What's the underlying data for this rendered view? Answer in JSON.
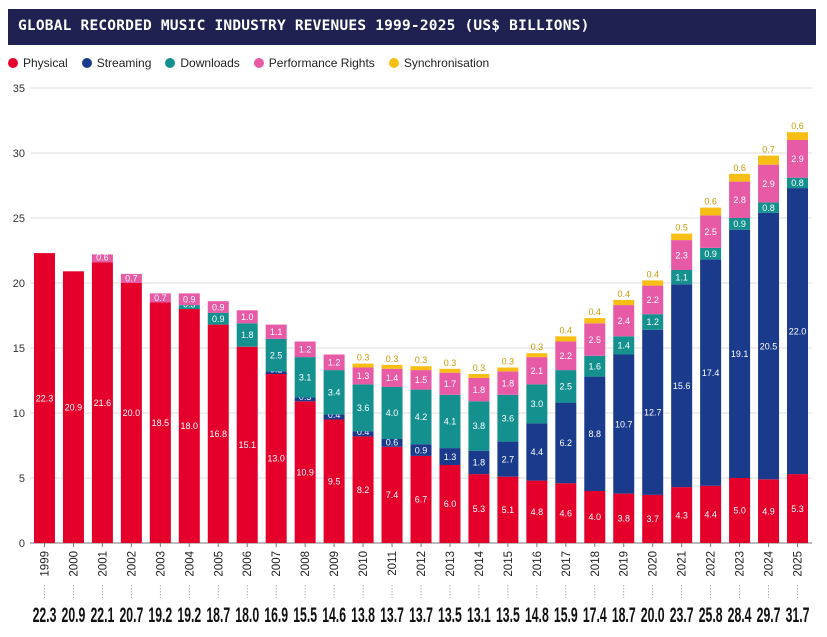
{
  "chart_data": {
    "type": "bar",
    "stacked": true,
    "title": "GLOBAL RECORDED MUSIC INDUSTRY REVENUES 1999-2025 (US$ BILLIONS)",
    "ylim": [
      0,
      35
    ],
    "yticks": [
      0,
      5,
      10,
      15,
      20,
      25,
      30,
      35
    ],
    "grid": true,
    "legend_position": "top-left",
    "categories": [
      "1999",
      "2000",
      "2001",
      "2002",
      "2003",
      "2004",
      "2005",
      "2006",
      "2007",
      "2008",
      "2009",
      "2010",
      "2011",
      "2012",
      "2013",
      "2014",
      "2015",
      "2016",
      "2017",
      "2018",
      "2019",
      "2020",
      "2021",
      "2022",
      "2023",
      "2024",
      "2025"
    ],
    "series": [
      {
        "name": "Physical",
        "color": "#e4002b",
        "values": [
          22.3,
          20.9,
          21.6,
          20.0,
          18.5,
          18.0,
          16.8,
          15.1,
          13.0,
          10.9,
          9.5,
          8.2,
          7.4,
          6.7,
          6.0,
          5.3,
          5.1,
          4.8,
          4.6,
          4.0,
          3.8,
          3.7,
          4.3,
          4.4,
          5.0,
          4.9,
          5.3
        ],
        "labels": [
          "22.3",
          "20.9",
          "21.6",
          "20.0",
          "18.5",
          "18.0",
          "16.8",
          "15.1",
          "13.0",
          "10.9",
          "9.5",
          "8.2",
          "7.4",
          "6.7",
          "6.0",
          "5.3",
          "5.1",
          "4.8",
          "4.6",
          "4.0",
          "3.8",
          "3.7",
          "4.3",
          "4.4",
          "5.0",
          "4.9",
          "5.3"
        ]
      },
      {
        "name": "Streaming",
        "color": "#1a3a8c",
        "values": [
          0,
          0,
          0,
          0,
          0,
          0,
          0,
          0,
          0.2,
          0.3,
          0.4,
          0.4,
          0.6,
          0.9,
          1.3,
          1.8,
          2.7,
          4.4,
          6.2,
          8.8,
          10.7,
          12.7,
          15.6,
          17.4,
          19.1,
          20.5,
          22.0
        ],
        "labels": [
          "",
          "",
          "",
          "",
          "",
          "",
          "",
          "",
          "0.2",
          "0.3",
          "0.4",
          "0.4",
          "0.6",
          "0.9",
          "1.3",
          "1.8",
          "2.7",
          "4.4",
          "6.2",
          "8.8",
          "10.7",
          "12.7",
          "15.6",
          "17.4",
          "19.1",
          "20.5",
          "22.0"
        ]
      },
      {
        "name": "Downloads",
        "color": "#14918f",
        "values": [
          0,
          0,
          0,
          0,
          0,
          0.3,
          0.9,
          1.8,
          2.5,
          3.1,
          3.4,
          3.6,
          4.0,
          4.2,
          4.1,
          3.8,
          3.6,
          3.0,
          2.5,
          1.6,
          1.4,
          1.2,
          1.1,
          0.9,
          0.9,
          0.8,
          0.8
        ],
        "labels": [
          "",
          "",
          "",
          "",
          "",
          "0.3",
          "0.9",
          "1.8",
          "2.5",
          "3.1",
          "3.4",
          "3.6",
          "4.0",
          "4.2",
          "4.1",
          "3.8",
          "3.6",
          "3.0",
          "2.5",
          "1.6",
          "1.4",
          "1.2",
          "1.1",
          "0.9",
          "0.9",
          "0.8",
          "0.8"
        ]
      },
      {
        "name": "Performance Rights",
        "color": "#e75aa6",
        "values": [
          0,
          0,
          0.6,
          0.7,
          0.7,
          0.9,
          0.9,
          1.0,
          1.1,
          1.2,
          1.2,
          1.3,
          1.4,
          1.5,
          1.7,
          1.8,
          1.8,
          2.1,
          2.2,
          2.5,
          2.4,
          2.2,
          2.3,
          2.5,
          2.8,
          2.9,
          2.9
        ],
        "labels": [
          "",
          "",
          "0.6",
          "0.7",
          "0.7",
          "0.9",
          "0.9",
          "1.0",
          "1.1",
          "1.2",
          "1.2",
          "1.3",
          "1.4",
          "1.5",
          "1.7",
          "1.8",
          "1.8",
          "2.1",
          "2.2",
          "2.5",
          "2.4",
          "2.2",
          "2.3",
          "2.5",
          "2.8",
          "2.9",
          "2.9"
        ]
      },
      {
        "name": "Synchronisation",
        "color": "#f7be16",
        "values": [
          0,
          0,
          0,
          0,
          0,
          0,
          0,
          0,
          0,
          0,
          0,
          0.3,
          0.3,
          0.3,
          0.3,
          0.3,
          0.3,
          0.3,
          0.4,
          0.4,
          0.4,
          0.4,
          0.5,
          0.6,
          0.6,
          0.7,
          0.6
        ],
        "labels": [
          "",
          "",
          "",
          "",
          "",
          "",
          "",
          "",
          "",
          "",
          "",
          "0.3",
          "0.3",
          "0.3",
          "0.3",
          "0.3",
          "0.3",
          "0.3",
          "0.4",
          "0.4",
          "0.4",
          "0.4",
          "0.5",
          "0.6",
          "0.6",
          "0.7",
          "0.6"
        ]
      }
    ],
    "totals": [
      "22.3",
      "20.9",
      "22.1",
      "20.7",
      "19.2",
      "19.2",
      "18.7",
      "18.0",
      "16.9",
      "15.5",
      "14.6",
      "13.8",
      "13.7",
      "13.7",
      "13.5",
      "13.1",
      "13.5",
      "14.8",
      "15.9",
      "17.4",
      "18.7",
      "20.0",
      "23.7",
      "25.8",
      "28.4",
      "29.7",
      "31.7"
    ]
  }
}
